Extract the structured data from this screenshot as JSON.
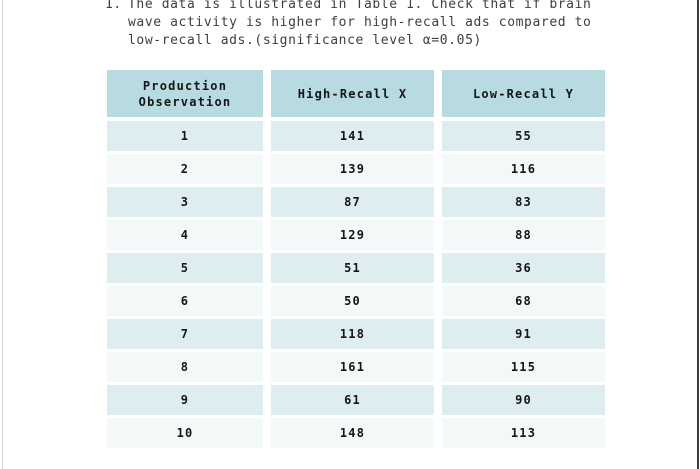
{
  "problem": {
    "number": "1.",
    "lines": [
      "The data is illustrated in Table 1. Check that if brain",
      "wave activity is higher for high-recall ads compared to",
      "low-recall ads.(significance level α=0.05)"
    ]
  },
  "table": {
    "headers": [
      "Production Observation",
      "High-Recall X",
      "Low-Recall Y"
    ],
    "rows": [
      [
        "1",
        "141",
        "55"
      ],
      [
        "2",
        "139",
        "116"
      ],
      [
        "3",
        "87",
        "83"
      ],
      [
        "4",
        "129",
        "88"
      ],
      [
        "5",
        "51",
        "36"
      ],
      [
        "6",
        "50",
        "68"
      ],
      [
        "7",
        "118",
        "91"
      ],
      [
        "8",
        "161",
        "115"
      ],
      [
        "9",
        "61",
        "90"
      ],
      [
        "10",
        "148",
        "113"
      ]
    ]
  },
  "colors": {
    "header_bg": "#b7dbe0",
    "row_odd": "#deedf0",
    "row_even": "#f3f8f9",
    "table_text": "#161616",
    "paragraph_text": "#3e3e3e"
  }
}
